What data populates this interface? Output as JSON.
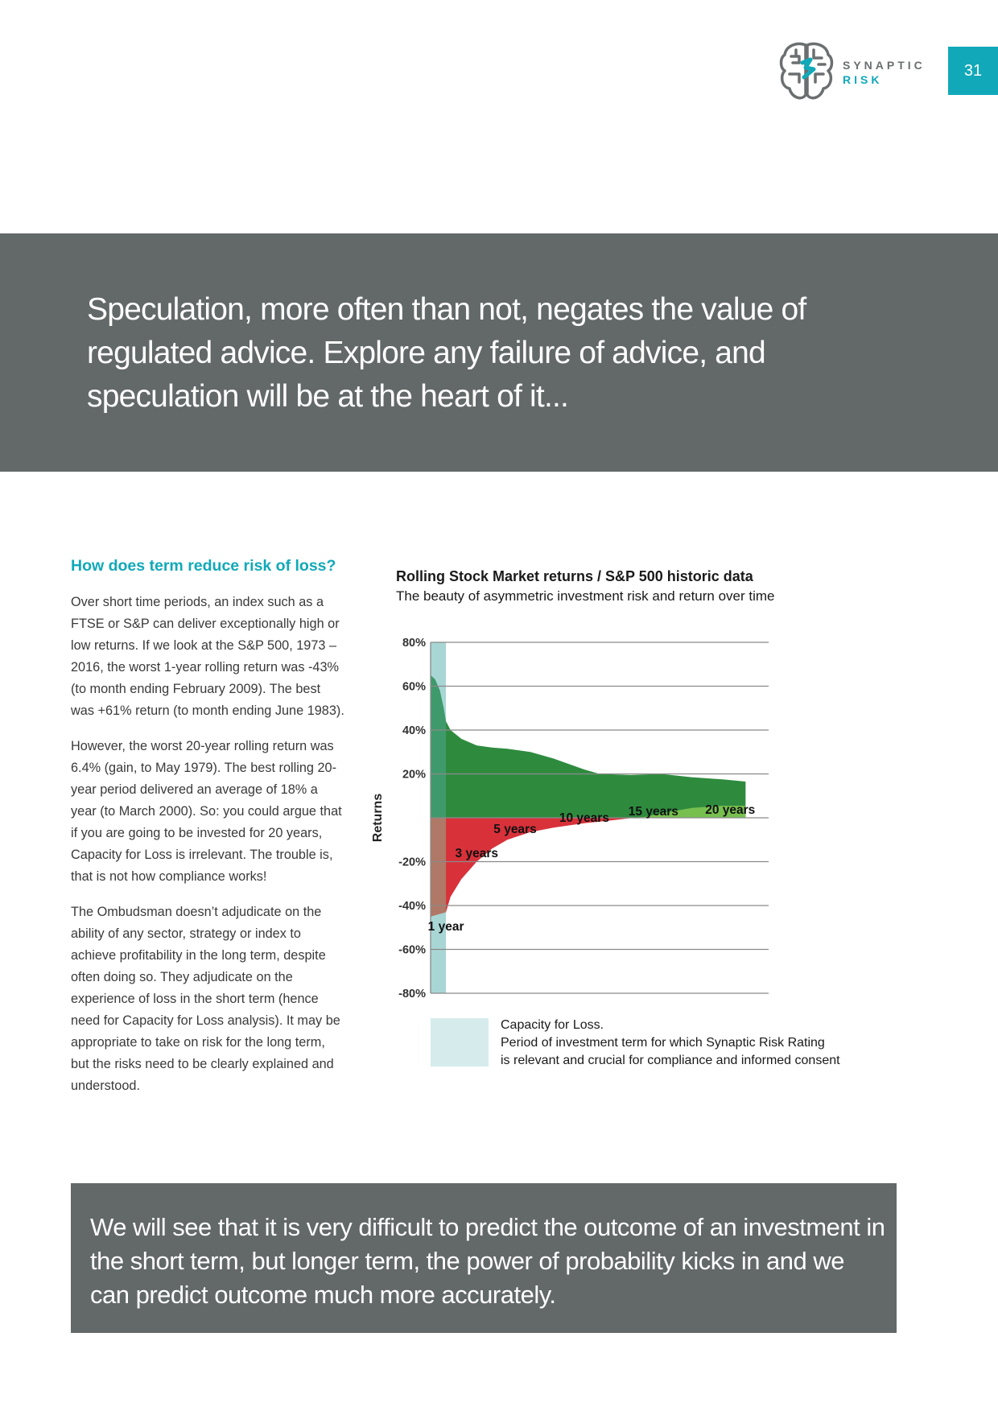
{
  "brand": {
    "line1": "SYNAPTIC",
    "line2": "RISK"
  },
  "page_number": "31",
  "quote": "Speculation, more often than not, negates the value of regulated advice. Explore any failure of advice, and speculation will be at the heart of it...",
  "section": {
    "heading": "How does term reduce risk of loss?",
    "paragraphs": [
      "Over short time periods, an index such as a FTSE or S&P can deliver exceptionally high or low returns. If we look at the S&P 500, 1973 – 2016, the worst 1-year rolling return was -43% (to month ending February 2009). The best was +61% return (to month ending June 1983).",
      "However, the worst 20-year rolling return was 6.4% (gain, to May 1979). The best rolling 20-year period delivered an average of 18% a year (to March 2000). So: you could argue that if you are going to be invested for 20 years, Capacity for Loss is irrelevant. The trouble is, that is not how compliance works!",
      "The Ombudsman doesn’t adjudicate on the ability of any sector, strategy or index to achieve profitability in the long term, despite often doing so. They adjudicate on the experience of loss in the short term (hence need for Capacity for Loss analysis). It may be appropriate to take on risk for the long term, but the risks need to be clearly explained and understood."
    ]
  },
  "chart_data": {
    "type": "area",
    "title": "Rolling Stock Market returns / S&P 500 historic data",
    "subtitle": "The beauty of asymmetric investment risk and return over time",
    "ylabel": "Returns",
    "ylim": [
      -80,
      80
    ],
    "y_ticks": [
      "80%",
      "60%",
      "40%",
      "20%",
      "-20%",
      "-40%",
      "-60%",
      "-80%"
    ],
    "y_tick_values": [
      80,
      60,
      40,
      20,
      -20,
      -40,
      -60,
      -80
    ],
    "grid": true,
    "term_labels": [
      "1 year",
      "3 years",
      "5 years",
      "10 years",
      "15 years",
      "20 years"
    ],
    "term_years": [
      1,
      3,
      5,
      10,
      15,
      20
    ],
    "series": [
      {
        "name": "best",
        "x": [
          0,
          0.3,
          0.6,
          0.85,
          1,
          1.3,
          2,
          3,
          4,
          5,
          6.5,
          8,
          10,
          11,
          13,
          15,
          17,
          19,
          20.5
        ],
        "values": [
          65,
          63,
          58,
          50,
          44,
          40,
          36,
          33,
          32,
          31.5,
          30,
          27,
          22,
          20,
          19.5,
          20,
          18.5,
          17.5,
          16.5
        ]
      },
      {
        "name": "worst",
        "x": [
          0,
          0.5,
          1,
          1.3,
          2,
          3,
          4,
          5,
          6.5,
          8,
          10,
          12,
          14,
          15,
          17,
          19,
          20.5
        ],
        "values": [
          -45,
          -44,
          -43,
          -36,
          -28,
          -20,
          -14,
          -10,
          -6.5,
          -4.5,
          -2.5,
          -1,
          0.5,
          2,
          4.5,
          5.5,
          5.5
        ]
      }
    ],
    "colors": {
      "capacity_band": "#a8d6d5",
      "gain": "#2e8b3e",
      "gain_band": "#3f9a6b",
      "loss": "#d8313a",
      "loss_band": "#b07866",
      "gain_floor": "#77c04f"
    },
    "legend": {
      "label": "Capacity for Loss.",
      "description_line1": "Period of investment term for which Synaptic Risk Rating",
      "description_line2": "is relevant and crucial for compliance and informed consent"
    }
  },
  "bottom_note": "We will see that it is very difficult to predict the outcome of an investment in the short term, but longer term, the power of probability kicks in and we can predict outcome much more accurately."
}
